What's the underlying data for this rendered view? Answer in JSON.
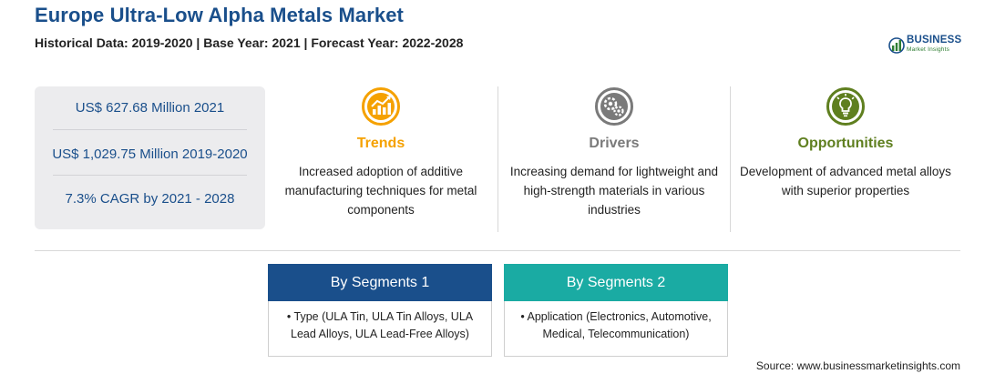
{
  "header": {
    "title": "Europe Ultra-Low Alpha Metals Market",
    "subtitle": "Historical Data: 2019-2020 | Base Year: 2021 | Forecast Year: 2022-2028"
  },
  "logo": {
    "word": "BUSINESS",
    "sub": "Market Insights"
  },
  "stats": [
    "US$ 627.68 Million 2021",
    "US$ 1,029.75 Million 2019-2020",
    "7.3% CAGR by 2021 - 2028"
  ],
  "columns": [
    {
      "heading": "Trends",
      "icon": "chart-growth-icon",
      "color": "#f5a100",
      "text": "Increased adoption of additive manufacturing techniques for metal components"
    },
    {
      "heading": "Drivers",
      "icon": "gears-icon",
      "color": "#7a7a7a",
      "text": "Increasing demand for lightweight and high-strength materials in various industries"
    },
    {
      "heading": "Opportunities",
      "icon": "lightbulb-icon",
      "color": "#5f7f1f",
      "text": "Development of advanced metal alloys with superior properties"
    }
  ],
  "segments": [
    {
      "heading": "By Segments 1",
      "color": "#1a4f8b",
      "bullet": "• Type (ULA Tin, ULA Tin Alloys, ULA Lead Alloys, ULA Lead-Free Alloys)"
    },
    {
      "heading": "By Segments 2",
      "color": "#1aaba3",
      "bullet": "• Application (Electronics, Automotive, Medical, Telecommunication)"
    }
  ],
  "source": "Source: www.businessmarketinsights.com"
}
